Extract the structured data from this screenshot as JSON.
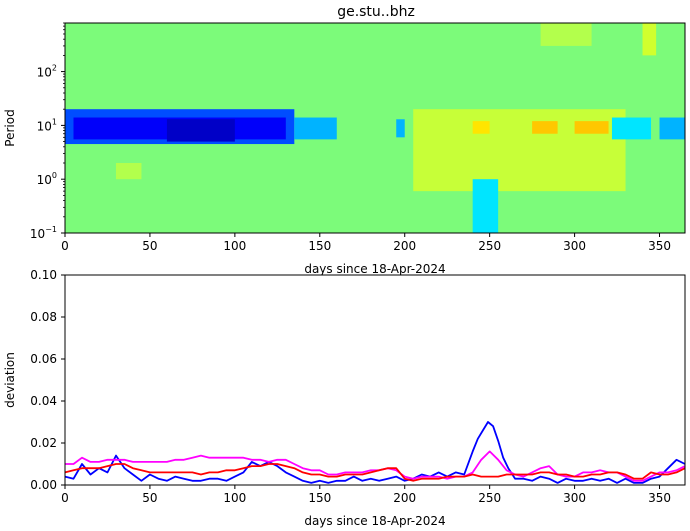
{
  "chart_data": [
    {
      "type": "heatmap",
      "title": "ge.stu..bhz",
      "xlabel": "days since 18-Apr-2024",
      "ylabel": "Period",
      "xlim": [
        0,
        365
      ],
      "ylim": [
        0.1,
        800
      ],
      "yscale": "log",
      "x_ticks": [
        "0",
        "50",
        "100",
        "150",
        "200",
        "250",
        "300",
        "350"
      ],
      "y_ticks": [
        {
          "value": 0.1,
          "label": "10",
          "exp": "−1"
        },
        {
          "value": 1,
          "label": "10",
          "exp": "0"
        },
        {
          "value": 10,
          "label": "10",
          "exp": "1"
        },
        {
          "value": 100,
          "label": "10",
          "exp": "2"
        }
      ],
      "colormap": "jet",
      "background_color": "#7cfb7a",
      "bands": [
        {
          "x0": 0,
          "x1": 135,
          "y0": 4.5,
          "y1": 20,
          "level": 0.2
        },
        {
          "x0": 5,
          "x1": 130,
          "y0": 5.5,
          "y1": 14,
          "level": 0.12
        },
        {
          "x0": 60,
          "x1": 100,
          "y0": 5,
          "y1": 13,
          "level": 0.07
        },
        {
          "x0": 135,
          "x1": 160,
          "y0": 5.5,
          "y1": 14,
          "level": 0.3
        },
        {
          "x0": 195,
          "x1": 200,
          "y0": 6,
          "y1": 13,
          "level": 0.3
        },
        {
          "x0": 350,
          "x1": 365,
          "y0": 5.5,
          "y1": 14,
          "level": 0.3
        },
        {
          "x0": 205,
          "x1": 330,
          "y0": 0.6,
          "y1": 20,
          "level": 0.57
        },
        {
          "x0": 240,
          "x1": 250,
          "y0": 7,
          "y1": 12,
          "level": 0.65
        },
        {
          "x0": 275,
          "x1": 290,
          "y0": 7,
          "y1": 12,
          "level": 0.68
        },
        {
          "x0": 300,
          "x1": 320,
          "y0": 7,
          "y1": 12,
          "level": 0.68
        },
        {
          "x0": 322,
          "x1": 345,
          "y0": 5.5,
          "y1": 14,
          "level": 0.35
        },
        {
          "x0": 240,
          "x1": 255,
          "y0": 0.1,
          "y1": 1,
          "level": 0.35
        },
        {
          "x0": 30,
          "x1": 45,
          "y0": 1,
          "y1": 2,
          "level": 0.55
        },
        {
          "x0": 280,
          "x1": 310,
          "y0": 300,
          "y1": 800,
          "level": 0.55
        },
        {
          "x0": 340,
          "x1": 348,
          "y0": 200,
          "y1": 800,
          "level": 0.58
        }
      ]
    },
    {
      "type": "line",
      "xlabel": "days since 18-Apr-2024",
      "ylabel": "deviation",
      "xlim": [
        0,
        365
      ],
      "ylim": [
        0,
        0.1
      ],
      "x_ticks": [
        "0",
        "50",
        "100",
        "150",
        "200",
        "250",
        "300",
        "350"
      ],
      "y_ticks": [
        "0.00",
        "0.02",
        "0.04",
        "0.06",
        "0.08",
        "0.10"
      ],
      "y_tick_values": [
        0,
        0.02,
        0.04,
        0.06,
        0.08,
        0.1
      ],
      "series": [
        {
          "color": "#0000ff",
          "x": [
            0,
            5,
            10,
            15,
            20,
            25,
            30,
            35,
            40,
            45,
            50,
            55,
            60,
            65,
            70,
            75,
            80,
            85,
            90,
            95,
            100,
            105,
            110,
            115,
            120,
            125,
            130,
            135,
            140,
            145,
            150,
            155,
            160,
            165,
            170,
            175,
            180,
            185,
            190,
            195,
            200,
            205,
            210,
            215,
            220,
            225,
            230,
            235,
            240,
            243,
            246,
            249,
            252,
            255,
            258,
            261,
            265,
            270,
            275,
            280,
            285,
            290,
            295,
            300,
            305,
            310,
            315,
            320,
            325,
            330,
            335,
            340,
            345,
            350,
            355,
            360,
            365
          ],
          "y": [
            0.004,
            0.003,
            0.01,
            0.005,
            0.008,
            0.006,
            0.014,
            0.008,
            0.005,
            0.002,
            0.005,
            0.003,
            0.002,
            0.004,
            0.003,
            0.002,
            0.002,
            0.003,
            0.003,
            0.002,
            0.004,
            0.006,
            0.011,
            0.009,
            0.011,
            0.009,
            0.006,
            0.004,
            0.002,
            0.001,
            0.002,
            0.001,
            0.002,
            0.002,
            0.004,
            0.002,
            0.003,
            0.002,
            0.003,
            0.004,
            0.002,
            0.003,
            0.005,
            0.004,
            0.006,
            0.004,
            0.006,
            0.005,
            0.016,
            0.022,
            0.026,
            0.03,
            0.028,
            0.021,
            0.013,
            0.008,
            0.003,
            0.003,
            0.002,
            0.004,
            0.003,
            0.001,
            0.003,
            0.002,
            0.002,
            0.003,
            0.002,
            0.003,
            0.001,
            0.003,
            0.001,
            0.001,
            0.003,
            0.004,
            0.008,
            0.012,
            0.01
          ]
        },
        {
          "color": "#ff00ff",
          "x": [
            0,
            5,
            10,
            15,
            20,
            25,
            30,
            35,
            40,
            45,
            50,
            55,
            60,
            65,
            70,
            75,
            80,
            85,
            90,
            95,
            100,
            105,
            110,
            115,
            120,
            125,
            130,
            135,
            140,
            145,
            150,
            155,
            160,
            165,
            170,
            175,
            180,
            185,
            190,
            195,
            200,
            205,
            210,
            215,
            220,
            225,
            230,
            235,
            240,
            245,
            250,
            255,
            260,
            265,
            270,
            275,
            280,
            285,
            290,
            295,
            300,
            305,
            310,
            315,
            320,
            325,
            330,
            335,
            340,
            345,
            350,
            355,
            360,
            365
          ],
          "y": [
            0.01,
            0.01,
            0.013,
            0.011,
            0.011,
            0.012,
            0.012,
            0.012,
            0.011,
            0.011,
            0.011,
            0.011,
            0.011,
            0.012,
            0.012,
            0.013,
            0.014,
            0.013,
            0.013,
            0.013,
            0.013,
            0.013,
            0.012,
            0.012,
            0.011,
            0.012,
            0.012,
            0.01,
            0.008,
            0.007,
            0.007,
            0.005,
            0.005,
            0.006,
            0.006,
            0.006,
            0.007,
            0.007,
            0.008,
            0.007,
            0.004,
            0.003,
            0.004,
            0.004,
            0.004,
            0.003,
            0.004,
            0.004,
            0.006,
            0.012,
            0.016,
            0.012,
            0.007,
            0.005,
            0.004,
            0.006,
            0.008,
            0.009,
            0.005,
            0.004,
            0.004,
            0.006,
            0.006,
            0.007,
            0.006,
            0.006,
            0.004,
            0.002,
            0.002,
            0.004,
            0.006,
            0.006,
            0.007,
            0.009
          ]
        },
        {
          "color": "#ff0000",
          "x": [
            0,
            5,
            10,
            15,
            20,
            25,
            30,
            35,
            40,
            45,
            50,
            55,
            60,
            65,
            70,
            75,
            80,
            85,
            90,
            95,
            100,
            105,
            110,
            115,
            120,
            125,
            130,
            135,
            140,
            145,
            150,
            155,
            160,
            165,
            170,
            175,
            180,
            185,
            190,
            195,
            200,
            205,
            210,
            215,
            220,
            225,
            230,
            235,
            240,
            245,
            250,
            255,
            260,
            265,
            270,
            275,
            280,
            285,
            290,
            295,
            300,
            305,
            310,
            315,
            320,
            325,
            330,
            335,
            340,
            345,
            350,
            355,
            360,
            365
          ],
          "y": [
            0.006,
            0.007,
            0.008,
            0.008,
            0.008,
            0.009,
            0.01,
            0.01,
            0.008,
            0.007,
            0.006,
            0.006,
            0.006,
            0.006,
            0.006,
            0.006,
            0.005,
            0.006,
            0.006,
            0.007,
            0.007,
            0.008,
            0.009,
            0.009,
            0.01,
            0.01,
            0.009,
            0.008,
            0.006,
            0.005,
            0.005,
            0.004,
            0.004,
            0.005,
            0.005,
            0.005,
            0.006,
            0.007,
            0.008,
            0.008,
            0.003,
            0.002,
            0.003,
            0.003,
            0.003,
            0.004,
            0.004,
            0.004,
            0.005,
            0.004,
            0.004,
            0.004,
            0.005,
            0.005,
            0.005,
            0.005,
            0.006,
            0.006,
            0.005,
            0.005,
            0.004,
            0.004,
            0.005,
            0.005,
            0.006,
            0.006,
            0.005,
            0.003,
            0.003,
            0.006,
            0.005,
            0.005,
            0.006,
            0.008
          ]
        }
      ]
    }
  ]
}
